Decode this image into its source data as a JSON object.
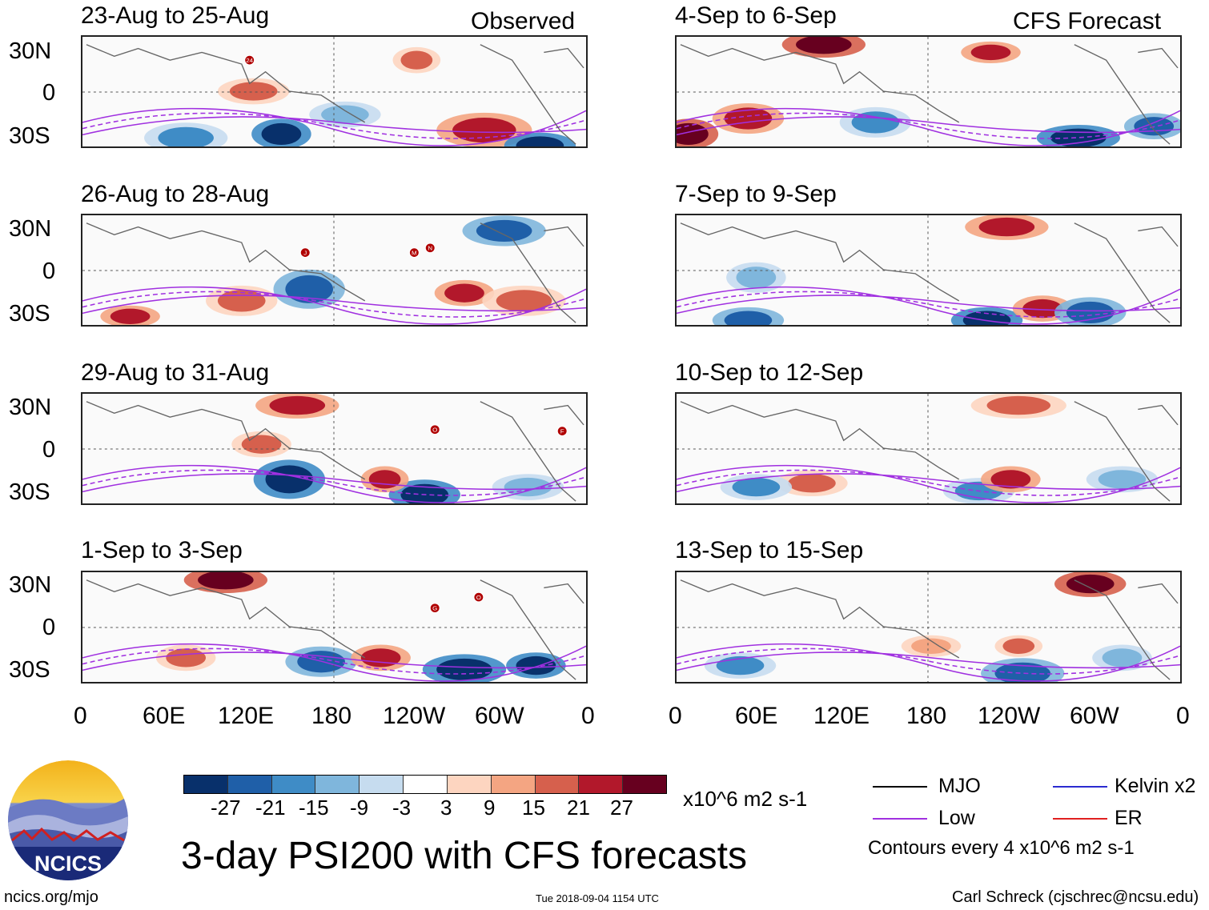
{
  "left_header": "Observed",
  "right_header": "CFS Forecast",
  "panels_left": [
    {
      "period": "23-Aug to 25-Aug",
      "storms": [
        "24"
      ]
    },
    {
      "period": "26-Aug to 28-Aug",
      "storms": [
        "J",
        "M",
        "N"
      ]
    },
    {
      "period": "29-Aug to 31-Aug",
      "storms": [
        "O",
        "F"
      ]
    },
    {
      "period": "1-Sep to 3-Sep",
      "storms": [
        "O",
        "G"
      ]
    }
  ],
  "panels_right": [
    {
      "period": "4-Sep to 6-Sep"
    },
    {
      "period": "7-Sep to 9-Sep"
    },
    {
      "period": "10-Sep to 12-Sep"
    },
    {
      "period": "13-Sep to 15-Sep"
    }
  ],
  "lat_labels": [
    "30N",
    "0",
    "30S"
  ],
  "lon_labels": [
    "0",
    "60E",
    "120E",
    "180",
    "120W",
    "60W",
    "0"
  ],
  "colorbar": {
    "tick_labels": [
      "-27",
      "-21",
      "-15",
      "-9",
      "-3",
      "3",
      "9",
      "15",
      "21",
      "27"
    ],
    "colors": [
      "#08306b",
      "#1f5fa8",
      "#3f8cc6",
      "#7fb6dc",
      "#c6dcef",
      "#ffffff",
      "#fdd5c0",
      "#f4a582",
      "#d6604d",
      "#b2182b",
      "#67001f"
    ],
    "units": "x10^6 m2 s-1"
  },
  "title": "3-day PSI200 with CFS forecasts",
  "legend": {
    "items": [
      {
        "label": "MJO",
        "color": "#000000"
      },
      {
        "label": "Kelvin x2",
        "color": "#2b2bd0"
      },
      {
        "label": "Low",
        "color": "#a030e0"
      },
      {
        "label": "ER",
        "color": "#e02020"
      }
    ],
    "contour_note": "Contours every 4 x10^6 m2 s-1"
  },
  "logo": {
    "text": "NCICS"
  },
  "footer": {
    "url": "ncics.org/mjo",
    "timestamp": "Tue 2018-09-04 1154 UTC",
    "credit": "Carl Schreck (cjschrec@ncsu.edu)"
  }
}
